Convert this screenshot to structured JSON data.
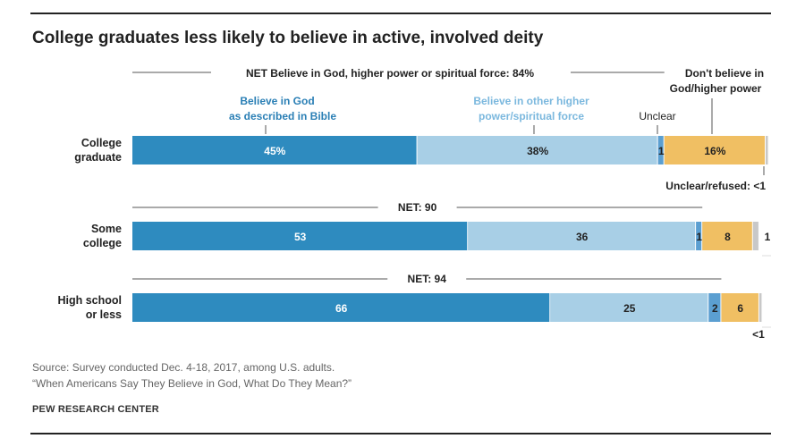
{
  "title": "College graduates less likely to believe in active, involved deity",
  "header_labels": {
    "net_believe": "NET Believe in God, higher power or spiritual force: 84%",
    "dont_believe": [
      "Don't believe in",
      "God/higher power"
    ],
    "bible": [
      "Believe in God",
      "as described in Bible"
    ],
    "other_power": [
      "Believe in other higher",
      "power/spiritual force"
    ],
    "unclear": "Unclear",
    "unclear_refused": "Unclear/refused: <1"
  },
  "source": [
    "Source: Survey conducted Dec. 4-18, 2017, among U.S. adults.",
    "“When Americans Say They Believe in God, What Do They Mean?”"
  ],
  "organization": "PEW RESEARCH CENTER",
  "chart_data": {
    "type": "bar",
    "orientation": "horizontal",
    "stacked": true,
    "xlim": [
      0,
      100
    ],
    "categories": [
      [
        "College",
        "graduate"
      ],
      [
        "Some",
        "college"
      ],
      [
        "High school",
        "or less"
      ]
    ],
    "net_labels": [
      "",
      "NET: 90",
      "NET: 94"
    ],
    "series": [
      {
        "name": "Believe in God as described in Bible",
        "color": "#2e8bbf",
        "text_color": "#ffffff",
        "values": [
          45,
          53,
          66
        ],
        "labels": [
          "45%",
          "53",
          "66"
        ]
      },
      {
        "name": "Believe in other higher power/spiritual force",
        "color": "#a8cfe6",
        "text_color": "#222222",
        "values": [
          38,
          36,
          25
        ],
        "labels": [
          "38%",
          "36",
          "25"
        ]
      },
      {
        "name": "Unclear",
        "color": "#5b9fd1",
        "text_color": "#222222",
        "values": [
          1,
          1,
          2
        ],
        "labels": [
          "1",
          "1",
          "2"
        ]
      },
      {
        "name": "Don't believe in God/higher power",
        "color": "#f0bf63",
        "text_color": "#222222",
        "values": [
          16,
          8,
          6
        ],
        "labels": [
          "16%",
          "8",
          "6"
        ]
      },
      {
        "name": "Unclear/refused",
        "color": "#c8c8c8",
        "text_color": "#222222",
        "values": [
          0.5,
          1,
          0.5
        ],
        "labels": [
          "<1",
          "1",
          "<1"
        ]
      }
    ]
  }
}
